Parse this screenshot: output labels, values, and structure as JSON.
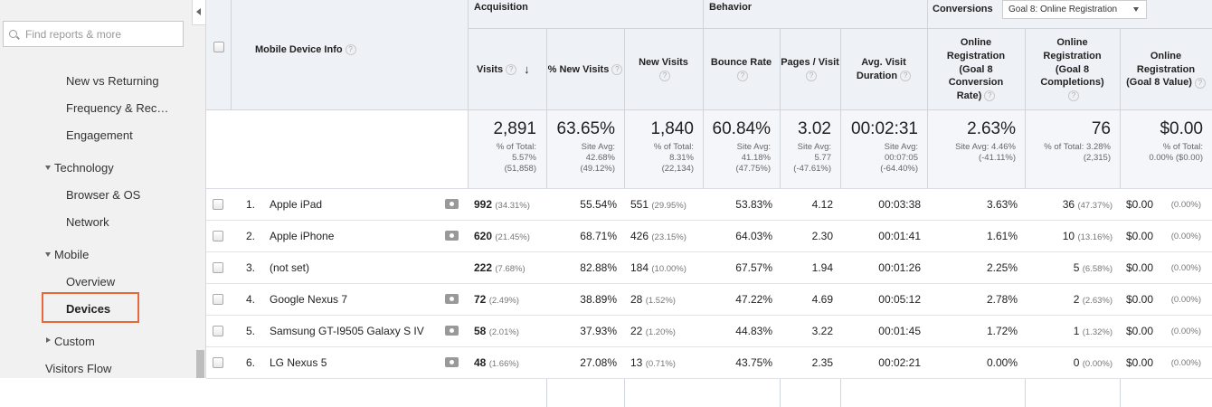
{
  "sidebar": {
    "search_placeholder": "Find reports & more",
    "items": {
      "new_vs_returning": "New vs Returning",
      "frequency": "Frequency & Rec…",
      "engagement": "Engagement",
      "technology": "Technology",
      "browser_os": "Browser & OS",
      "network": "Network",
      "mobile": "Mobile",
      "overview": "Overview",
      "devices": "Devices",
      "custom": "Custom",
      "visitors_flow": "Visitors Flow"
    }
  },
  "table": {
    "groups": {
      "acquisition": "Acquisition",
      "behavior": "Behavior",
      "conversions": "Conversions",
      "goal_select": "Goal 8: Online Registration"
    },
    "headers": {
      "dimension": "Mobile Device Info",
      "visits": "Visits",
      "pct_new_visits": "% New Visits",
      "new_visits": "New Visits",
      "bounce_rate": "Bounce Rate",
      "pages_visit": "Pages / Visit",
      "avg_duration": "Avg. Visit Duration",
      "conv_rate": "Online Registration (Goal 8 Conversion Rate)",
      "completions": "Online Registration (Goal 8 Completions)",
      "value": "Online Registration (Goal 8 Value)"
    },
    "totals": {
      "visits": {
        "big": "2,891",
        "l1": "% of Total:",
        "l2": "5.57%",
        "l3": "(51,858)"
      },
      "pct_new": {
        "big": "63.65%",
        "l1": "Site Avg:",
        "l2": "42.68%",
        "l3": "(49.12%)"
      },
      "new_visits": {
        "big": "1,840",
        "l1": "% of Total:",
        "l2": "8.31%",
        "l3": "(22,134)"
      },
      "bounce": {
        "big": "60.84%",
        "l1": "Site Avg:",
        "l2": "41.18%",
        "l3": "(47.75%)"
      },
      "pages": {
        "big": "3.02",
        "l1": "Site Avg:",
        "l2": "5.77",
        "l3": "(-47.61%)"
      },
      "duration": {
        "big": "00:02:31",
        "l1": "Site Avg:",
        "l2": "00:07:05",
        "l3": "(-64.40%)"
      },
      "conv_rate": {
        "big": "2.63%",
        "l1": "Site Avg: 4.46%",
        "l2": "(-41.11%)"
      },
      "completions": {
        "big": "76",
        "l1": "% of Total: 3.28%",
        "l2": "(2,315)"
      },
      "value": {
        "big": "$0.00",
        "l1": "% of Total:",
        "l2": "0.00% ($0.00)"
      }
    },
    "rows": [
      {
        "n": "1.",
        "device": "Apple iPad",
        "visits": "992",
        "visits_pct": "(34.31%)",
        "pct_new": "55.54%",
        "new_visits": "551",
        "new_pct": "(29.95%)",
        "bounce": "53.83%",
        "pages": "4.12",
        "duration": "00:03:38",
        "conv": "3.63%",
        "comp": "36",
        "comp_pct": "(47.37%)",
        "value": "$0.00",
        "value_pct": "(0.00%)"
      },
      {
        "n": "2.",
        "device": "Apple iPhone",
        "visits": "620",
        "visits_pct": "(21.45%)",
        "pct_new": "68.71%",
        "new_visits": "426",
        "new_pct": "(23.15%)",
        "bounce": "64.03%",
        "pages": "2.30",
        "duration": "00:01:41",
        "conv": "1.61%",
        "comp": "10",
        "comp_pct": "(13.16%)",
        "value": "$0.00",
        "value_pct": "(0.00%)"
      },
      {
        "n": "3.",
        "device": "(not set)",
        "visits": "222",
        "visits_pct": "(7.68%)",
        "pct_new": "82.88%",
        "new_visits": "184",
        "new_pct": "(10.00%)",
        "bounce": "67.57%",
        "pages": "1.94",
        "duration": "00:01:26",
        "conv": "2.25%",
        "comp": "5",
        "comp_pct": "(6.58%)",
        "value": "$0.00",
        "value_pct": "(0.00%)"
      },
      {
        "n": "4.",
        "device": "Google Nexus 7",
        "visits": "72",
        "visits_pct": "(2.49%)",
        "pct_new": "38.89%",
        "new_visits": "28",
        "new_pct": "(1.52%)",
        "bounce": "47.22%",
        "pages": "4.69",
        "duration": "00:05:12",
        "conv": "2.78%",
        "comp": "2",
        "comp_pct": "(2.63%)",
        "value": "$0.00",
        "value_pct": "(0.00%)"
      },
      {
        "n": "5.",
        "device": "Samsung GT-I9505 Galaxy S IV",
        "visits": "58",
        "visits_pct": "(2.01%)",
        "pct_new": "37.93%",
        "new_visits": "22",
        "new_pct": "(1.20%)",
        "bounce": "44.83%",
        "pages": "3.22",
        "duration": "00:01:45",
        "conv": "1.72%",
        "comp": "1",
        "comp_pct": "(1.32%)",
        "value": "$0.00",
        "value_pct": "(0.00%)"
      },
      {
        "n": "6.",
        "device": "LG Nexus 5",
        "visits": "48",
        "visits_pct": "(1.66%)",
        "pct_new": "27.08%",
        "new_visits": "13",
        "new_pct": "(0.71%)",
        "bounce": "43.75%",
        "pages": "2.35",
        "duration": "00:02:21",
        "conv": "0.00%",
        "comp": "0",
        "comp_pct": "(0.00%)",
        "value": "$0.00",
        "value_pct": "(0.00%)"
      }
    ]
  }
}
